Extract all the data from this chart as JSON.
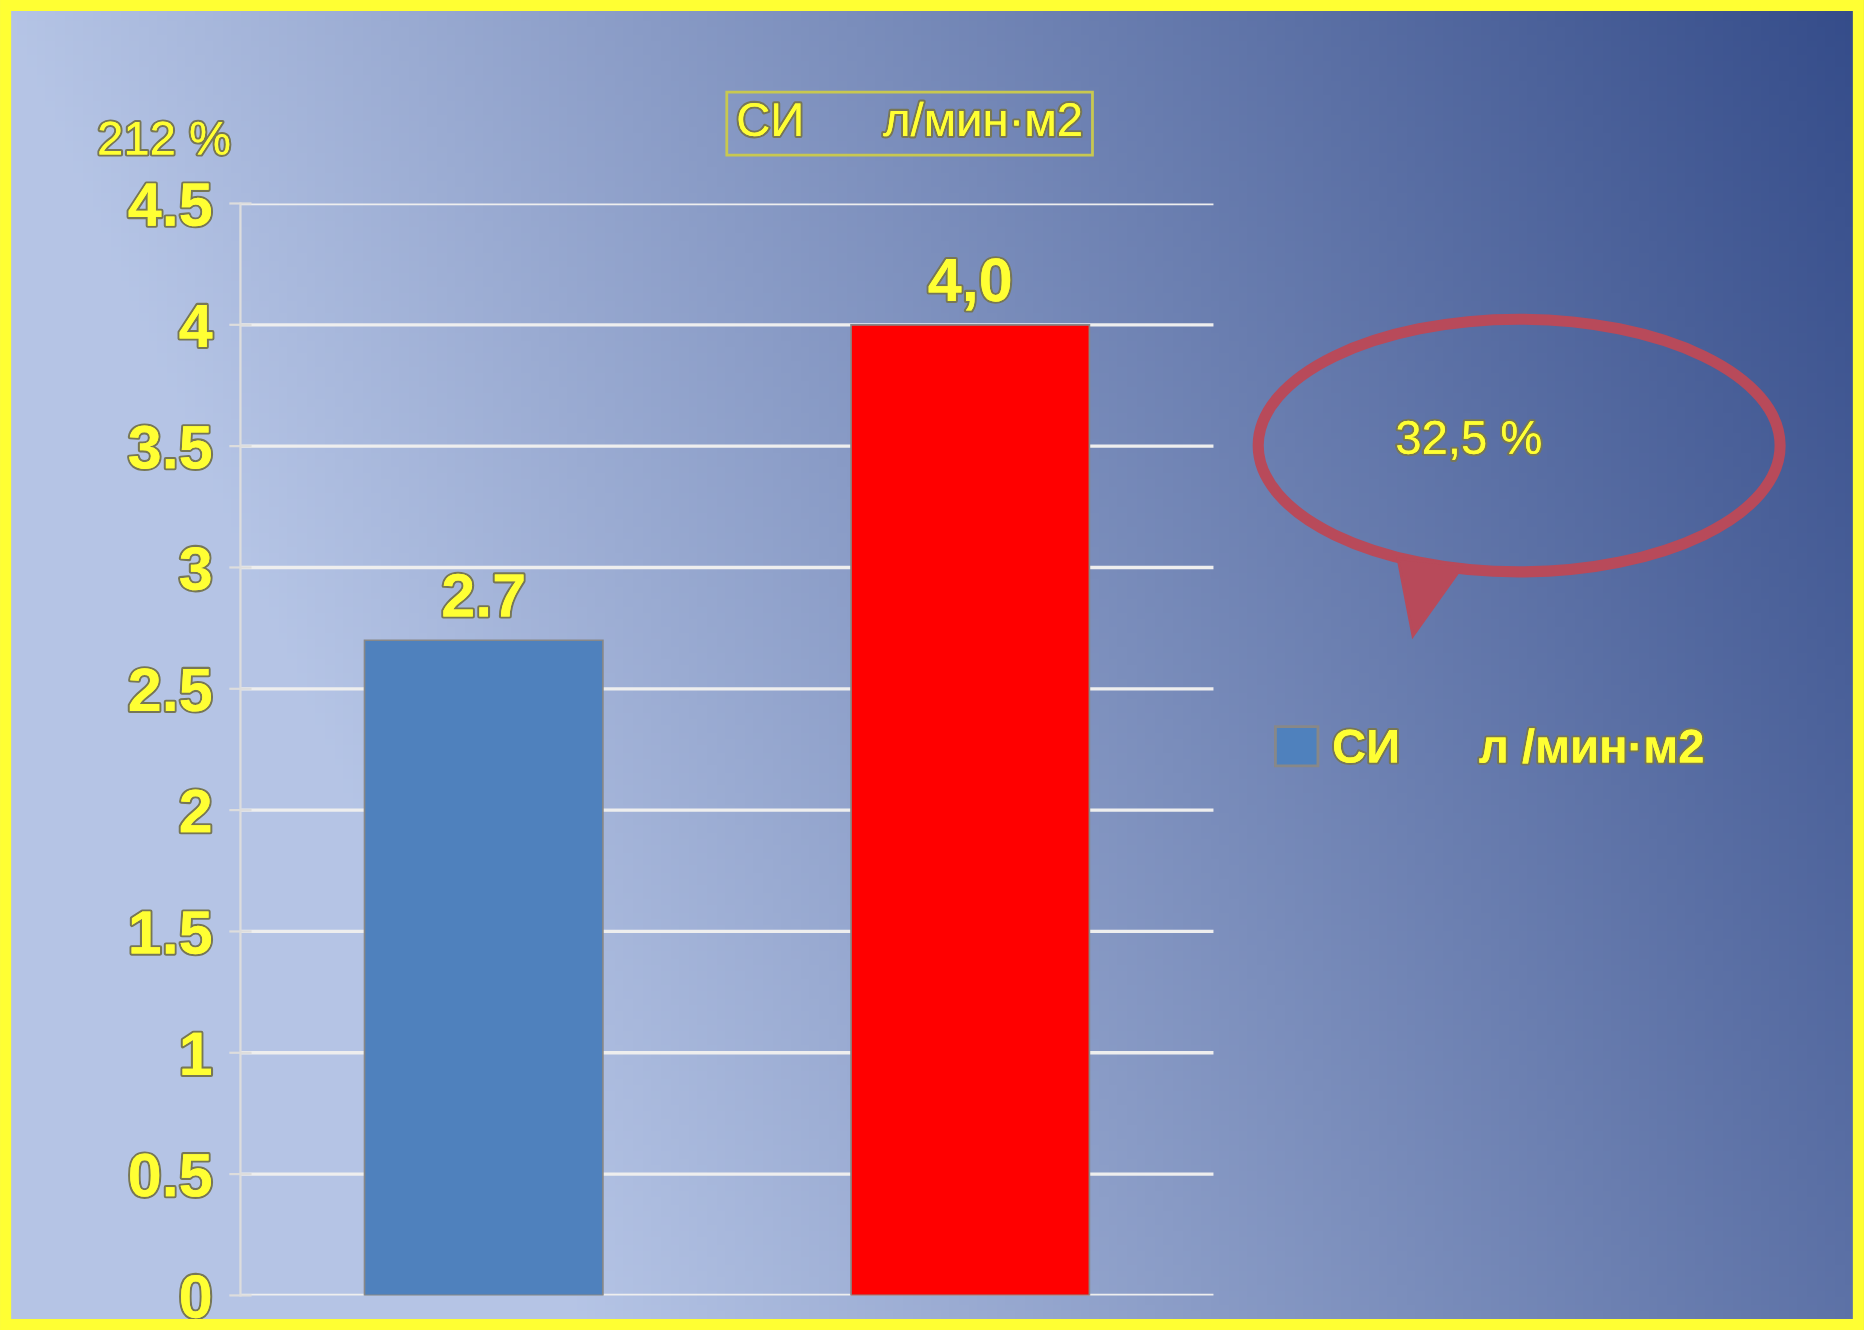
{
  "chart_data": {
    "type": "bar",
    "title": "СИ      л/мин·м2",
    "categories": [
      null,
      null
    ],
    "series": [
      {
        "name": "СИ      л /мин·м2",
        "colors": [
          "#4f81bd",
          "#ff0000"
        ],
        "values": [
          2.7,
          4.0
        ],
        "value_labels": [
          "2.7",
          "4,0"
        ]
      }
    ],
    "ylim": [
      0,
      4.5
    ],
    "yticks": [
      0,
      0.5,
      1,
      1.5,
      2,
      2.5,
      3,
      3.5,
      4,
      4.5
    ],
    "grid": "y",
    "legend": "right",
    "annotations": [
      "212 %",
      "32,5 %"
    ]
  }
}
